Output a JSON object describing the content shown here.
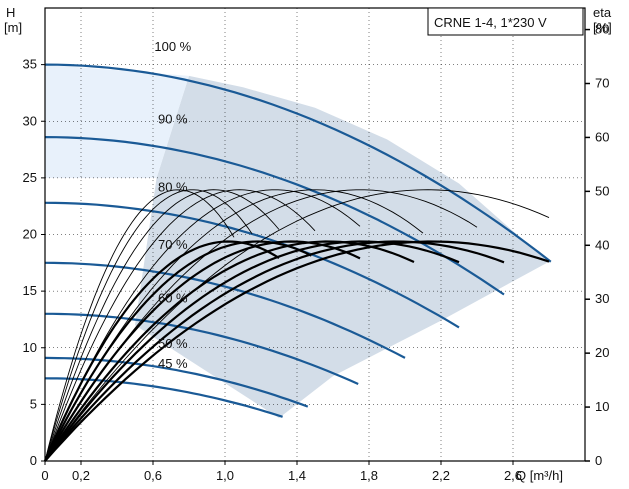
{
  "chart_data": {
    "type": "line",
    "title": "CRNE 1-4, 1*230 V",
    "left_axis": {
      "label_line1": "H",
      "label_line2": "[m]",
      "range": [
        0,
        40
      ],
      "ticks": [
        0,
        5,
        10,
        15,
        20,
        25,
        30,
        35
      ]
    },
    "right_axis": {
      "label_line1": "eta",
      "label_line2": "[%]",
      "range": [
        0,
        84
      ],
      "ticks": [
        0,
        10,
        20,
        30,
        40,
        50,
        60,
        70,
        80
      ]
    },
    "x_axis": {
      "label": "Q [m³/h]",
      "range": [
        0,
        3.0
      ],
      "ticks": [
        0,
        0.2,
        0.6,
        1.0,
        1.4,
        1.8,
        2.2,
        2.6
      ],
      "tick_labels": [
        "0",
        "0,2",
        "0,6",
        "1,0",
        "1,4",
        "1,8",
        "2,2",
        "2,6"
      ]
    },
    "grid": true,
    "operating_envelope": {
      "light_region": [
        [
          0,
          35
        ],
        [
          0.8,
          34
        ],
        [
          0.62,
          25
        ],
        [
          0,
          25
        ]
      ],
      "dark_region": [
        [
          0.8,
          34
        ],
        [
          1.1,
          33
        ],
        [
          1.5,
          31.2
        ],
        [
          1.9,
          28.4
        ],
        [
          2.3,
          24.5
        ],
        [
          2.6,
          20.3
        ],
        [
          2.8,
          17.6
        ],
        [
          2.2,
          12.4
        ],
        [
          1.6,
          7.5
        ],
        [
          1.3,
          3.8
        ],
        [
          0.5,
          12
        ],
        [
          0.62,
          25
        ]
      ]
    },
    "speed_labels": [
      {
        "text": "100 %",
        "x": 0.71,
        "y": 36.2
      },
      {
        "text": "90 %",
        "x": 0.71,
        "y": 29.8
      },
      {
        "text": "80 %",
        "x": 0.71,
        "y": 23.8
      },
      {
        "text": "70 %",
        "x": 0.71,
        "y": 18.7
      },
      {
        "text": "60 %",
        "x": 0.71,
        "y": 14.0
      },
      {
        "text": "50 %",
        "x": 0.71,
        "y": 10.0
      },
      {
        "text": "45 %",
        "x": 0.71,
        "y": 8.2
      }
    ],
    "head_curves": [
      {
        "name": "100 %",
        "h0": 35.0,
        "qmax": 2.81,
        "hend": 17.6
      },
      {
        "name": "90 %",
        "h0": 28.6,
        "qmax": 2.55,
        "hend": 14.7
      },
      {
        "name": "80 %",
        "h0": 22.8,
        "qmax": 2.3,
        "hend": 11.8
      },
      {
        "name": "70 %",
        "h0": 17.5,
        "qmax": 2.0,
        "hend": 9.1
      },
      {
        "name": "60 %",
        "h0": 13.0,
        "qmax": 1.74,
        "hend": 6.8
      },
      {
        "name": "50 %",
        "h0": 9.1,
        "qmax": 1.46,
        "hend": 4.8
      },
      {
        "name": "45 %",
        "h0": 7.3,
        "qmax": 1.32,
        "hend": 3.9
      }
    ],
    "efficiency_curves": [
      {
        "qmax": 2.8,
        "peak": 40.7,
        "qpeak": 2.15,
        "bold": true
      },
      {
        "qmax": 2.55,
        "peak": 40.7,
        "qpeak": 1.95,
        "bold": true
      },
      {
        "qmax": 2.3,
        "peak": 40.7,
        "qpeak": 1.76,
        "bold": true
      },
      {
        "qmax": 2.05,
        "peak": 40.7,
        "qpeak": 1.57,
        "bold": true
      },
      {
        "qmax": 1.75,
        "peak": 40.7,
        "qpeak": 1.37,
        "bold": true
      },
      {
        "qmax": 1.48,
        "peak": 40.7,
        "qpeak": 1.18,
        "bold": true
      },
      {
        "qmax": 1.3,
        "peak": 40.7,
        "qpeak": 1.02,
        "bold": true
      },
      {
        "qmax": 2.8,
        "peak": 50.3,
        "qpeak": 2.12,
        "bold": false
      },
      {
        "qmax": 2.4,
        "peak": 50.3,
        "qpeak": 1.75,
        "bold": false
      },
      {
        "qmax": 2.1,
        "peak": 50.3,
        "qpeak": 1.5,
        "bold": false
      },
      {
        "qmax": 1.75,
        "peak": 50.3,
        "qpeak": 1.28,
        "bold": false
      },
      {
        "qmax": 1.5,
        "peak": 50.3,
        "qpeak": 1.08,
        "bold": false
      },
      {
        "qmax": 1.3,
        "peak": 50.3,
        "qpeak": 0.94,
        "bold": false
      },
      {
        "qmax": 1.15,
        "peak": 50.3,
        "qpeak": 0.82,
        "bold": false
      },
      {
        "qmax": 1.05,
        "peak": 50.3,
        "qpeak": 0.74,
        "bold": false
      }
    ],
    "colors": {
      "head_curve": "#1a5a96",
      "efficiency_curve": "#000000",
      "light_region": "#e8f1fb",
      "dark_region": "#d3dde8",
      "grid": "#000000"
    }
  }
}
